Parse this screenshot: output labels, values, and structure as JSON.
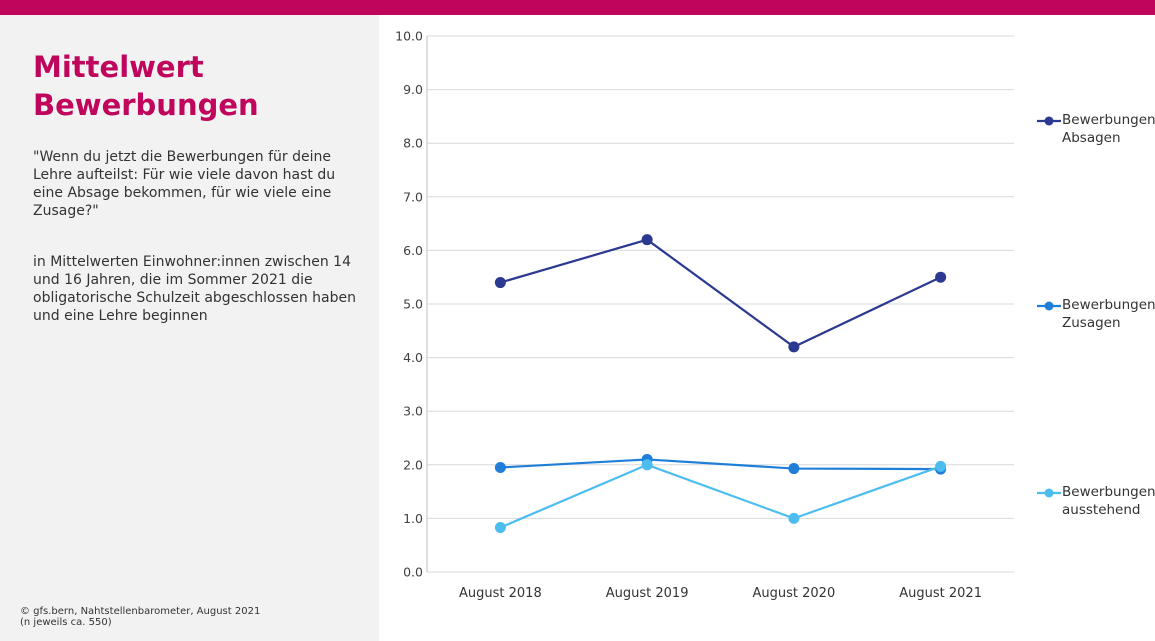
{
  "header": {
    "accent_color": "#c0065c"
  },
  "side_panel": {
    "title_line1": "Mittelwert",
    "title_line2": "Bewerbungen",
    "question": "\"Wenn du jetzt die Bewerbungen für deine Lehre aufteilst: Für wie viele davon hast du eine Absage bekommen, für wie viele eine Zusage?\"",
    "population": "in Mittelwerten Einwohner:innen zwischen 14 und 16 Jahren, die im Sommer 2021 die obligatorische Schulzeit abgeschlossen haben und eine Lehre beginnen",
    "source_line1": "©  gfs.bern, Nahtstellenbarometer, August 2021",
    "source_line2": "(n jeweils ca. 550)"
  },
  "chart_data": {
    "type": "line",
    "categories": [
      "August 2018",
      "August 2019",
      "August 2020",
      "August 2021"
    ],
    "ylim": [
      0,
      10
    ],
    "yticks": [
      "0.0",
      "1.0",
      "2.0",
      "3.0",
      "4.0",
      "5.0",
      "6.0",
      "7.0",
      "8.0",
      "9.0",
      "10.0"
    ],
    "grid": true,
    "legend_position": "right",
    "series": [
      {
        "name_line1": "Bewerbungen",
        "name_line2": "Absagen",
        "color": "#2b3990",
        "values": [
          5.4,
          6.2,
          4.2,
          5.5
        ]
      },
      {
        "name_line1": "Bewerbungen",
        "name_line2": "Zusagen",
        "color": "#1f7fd8",
        "values": [
          1.95,
          2.1,
          1.93,
          1.92
        ]
      },
      {
        "name_line1": "Bewerbungen",
        "name_line2": "ausstehend",
        "color": "#4dbdf0",
        "values": [
          0.83,
          2.0,
          1.0,
          1.97
        ]
      }
    ]
  }
}
